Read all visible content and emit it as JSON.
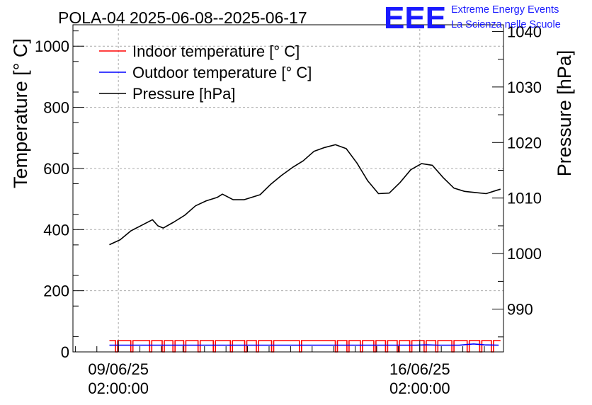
{
  "chart_data": {
    "type": "line",
    "title": "POLA-04 2025-06-08--2025-06-17",
    "logo": {
      "text": "EEE",
      "line1": "Extreme Energy Events",
      "line2": "La Scienza nelle Scuole",
      "color": "#1a1aff"
    },
    "xlabel": "",
    "ylabel_left": "Temperature [° C]",
    "ylabel_right": "Pressure [hPa]",
    "x_range": [
      "2025-06-08T00:40",
      "2025-06-18T00:40"
    ],
    "ylim_left": [
      0,
      1070
    ],
    "ylim_right": [
      982.3,
      1041.2
    ],
    "grid": true,
    "legend_position": "top-left",
    "x_ticks": [
      {
        "date": "09/06/25",
        "time": "02:00:00",
        "t": "2025-06-09T02:00"
      },
      {
        "date": "16/06/25",
        "time": "02:00:00",
        "t": "2025-06-16T02:00"
      }
    ],
    "y_ticks_left": [
      "0",
      "200",
      "400",
      "600",
      "800",
      "1000"
    ],
    "y_ticks_right": [
      "990",
      "1000",
      "1010",
      "1020",
      "1030",
      "1040"
    ],
    "series": [
      {
        "name": "Indoor temperature [° C]",
        "axis": "left",
        "color": "#ff0000",
        "style": "dropouts",
        "base": 37,
        "dropouts": [
          "2025-06-09T01:00",
          "2025-06-09T09:30",
          "2025-06-09T20:00",
          "2025-06-10T03:00",
          "2025-06-10T09:00",
          "2025-06-10T15:00",
          "2025-06-10T23:00",
          "2025-06-11T07:30",
          "2025-06-11T17:00",
          "2025-06-12T01:00",
          "2025-06-12T07:30",
          "2025-06-12T16:00",
          "2025-06-13T07:30",
          "2025-06-14T03:30",
          "2025-06-14T10:00",
          "2025-06-14T17:30",
          "2025-06-15T01:00",
          "2025-06-15T07:30",
          "2025-06-15T14:00",
          "2025-06-15T21:00",
          "2025-06-16T05:00",
          "2025-06-16T11:30",
          "2025-06-16T20:30",
          "2025-06-17T05:00",
          "2025-06-17T12:00",
          "2025-06-17T18:30"
        ]
      },
      {
        "name": "Outdoor temperature [° C]",
        "axis": "left",
        "color": "#0000ff",
        "points": [
          [
            "2025-06-08T21:00",
            22
          ],
          [
            "2025-06-16T00:00",
            22
          ],
          [
            "2025-06-16T06:00",
            23
          ],
          [
            "2025-06-16T12:00",
            22
          ],
          [
            "2025-06-17T00:00",
            22
          ],
          [
            "2025-06-17T08:00",
            26
          ],
          [
            "2025-06-17T14:00",
            23
          ],
          [
            "2025-06-17T22:00",
            22
          ]
        ]
      },
      {
        "name": "Pressure [hPa]",
        "axis": "right",
        "color": "#000000",
        "points": [
          [
            "2025-06-08T21:00",
            1001.6
          ],
          [
            "2025-06-09T03:00",
            1002.5
          ],
          [
            "2025-06-09T09:00",
            1004.1
          ],
          [
            "2025-06-09T15:00",
            1005.1
          ],
          [
            "2025-06-09T21:00",
            1006.1
          ],
          [
            "2025-06-10T00:00",
            1005.0
          ],
          [
            "2025-06-10T03:00",
            1004.6
          ],
          [
            "2025-06-10T09:00",
            1005.7
          ],
          [
            "2025-06-10T15:00",
            1006.9
          ],
          [
            "2025-06-10T21:00",
            1008.6
          ],
          [
            "2025-06-11T03:00",
            1009.5
          ],
          [
            "2025-06-11T09:00",
            1010.1
          ],
          [
            "2025-06-11T12:00",
            1010.7
          ],
          [
            "2025-06-11T18:00",
            1009.7
          ],
          [
            "2025-06-12T00:00",
            1009.7
          ],
          [
            "2025-06-12T09:00",
            1010.6
          ],
          [
            "2025-06-12T15:00",
            1012.5
          ],
          [
            "2025-06-12T21:00",
            1014.1
          ],
          [
            "2025-06-13T03:00",
            1015.5
          ],
          [
            "2025-06-13T09:00",
            1016.7
          ],
          [
            "2025-06-13T15:00",
            1018.4
          ],
          [
            "2025-06-13T21:00",
            1019.1
          ],
          [
            "2025-06-14T03:00",
            1019.6
          ],
          [
            "2025-06-14T09:00",
            1018.9
          ],
          [
            "2025-06-14T15:00",
            1016.3
          ],
          [
            "2025-06-14T21:00",
            1013.1
          ],
          [
            "2025-06-15T03:00",
            1010.8
          ],
          [
            "2025-06-15T09:00",
            1010.9
          ],
          [
            "2025-06-15T15:00",
            1012.8
          ],
          [
            "2025-06-15T21:00",
            1015.1
          ],
          [
            "2025-06-16T03:00",
            1016.2
          ],
          [
            "2025-06-16T09:00",
            1015.9
          ],
          [
            "2025-06-16T15:00",
            1013.7
          ],
          [
            "2025-06-16T21:00",
            1011.8
          ],
          [
            "2025-06-17T03:00",
            1011.2
          ],
          [
            "2025-06-17T09:00",
            1011.0
          ],
          [
            "2025-06-17T15:00",
            1010.8
          ],
          [
            "2025-06-17T21:00",
            1011.4
          ],
          [
            "2025-06-17T23:00",
            1011.6
          ]
        ]
      }
    ]
  }
}
